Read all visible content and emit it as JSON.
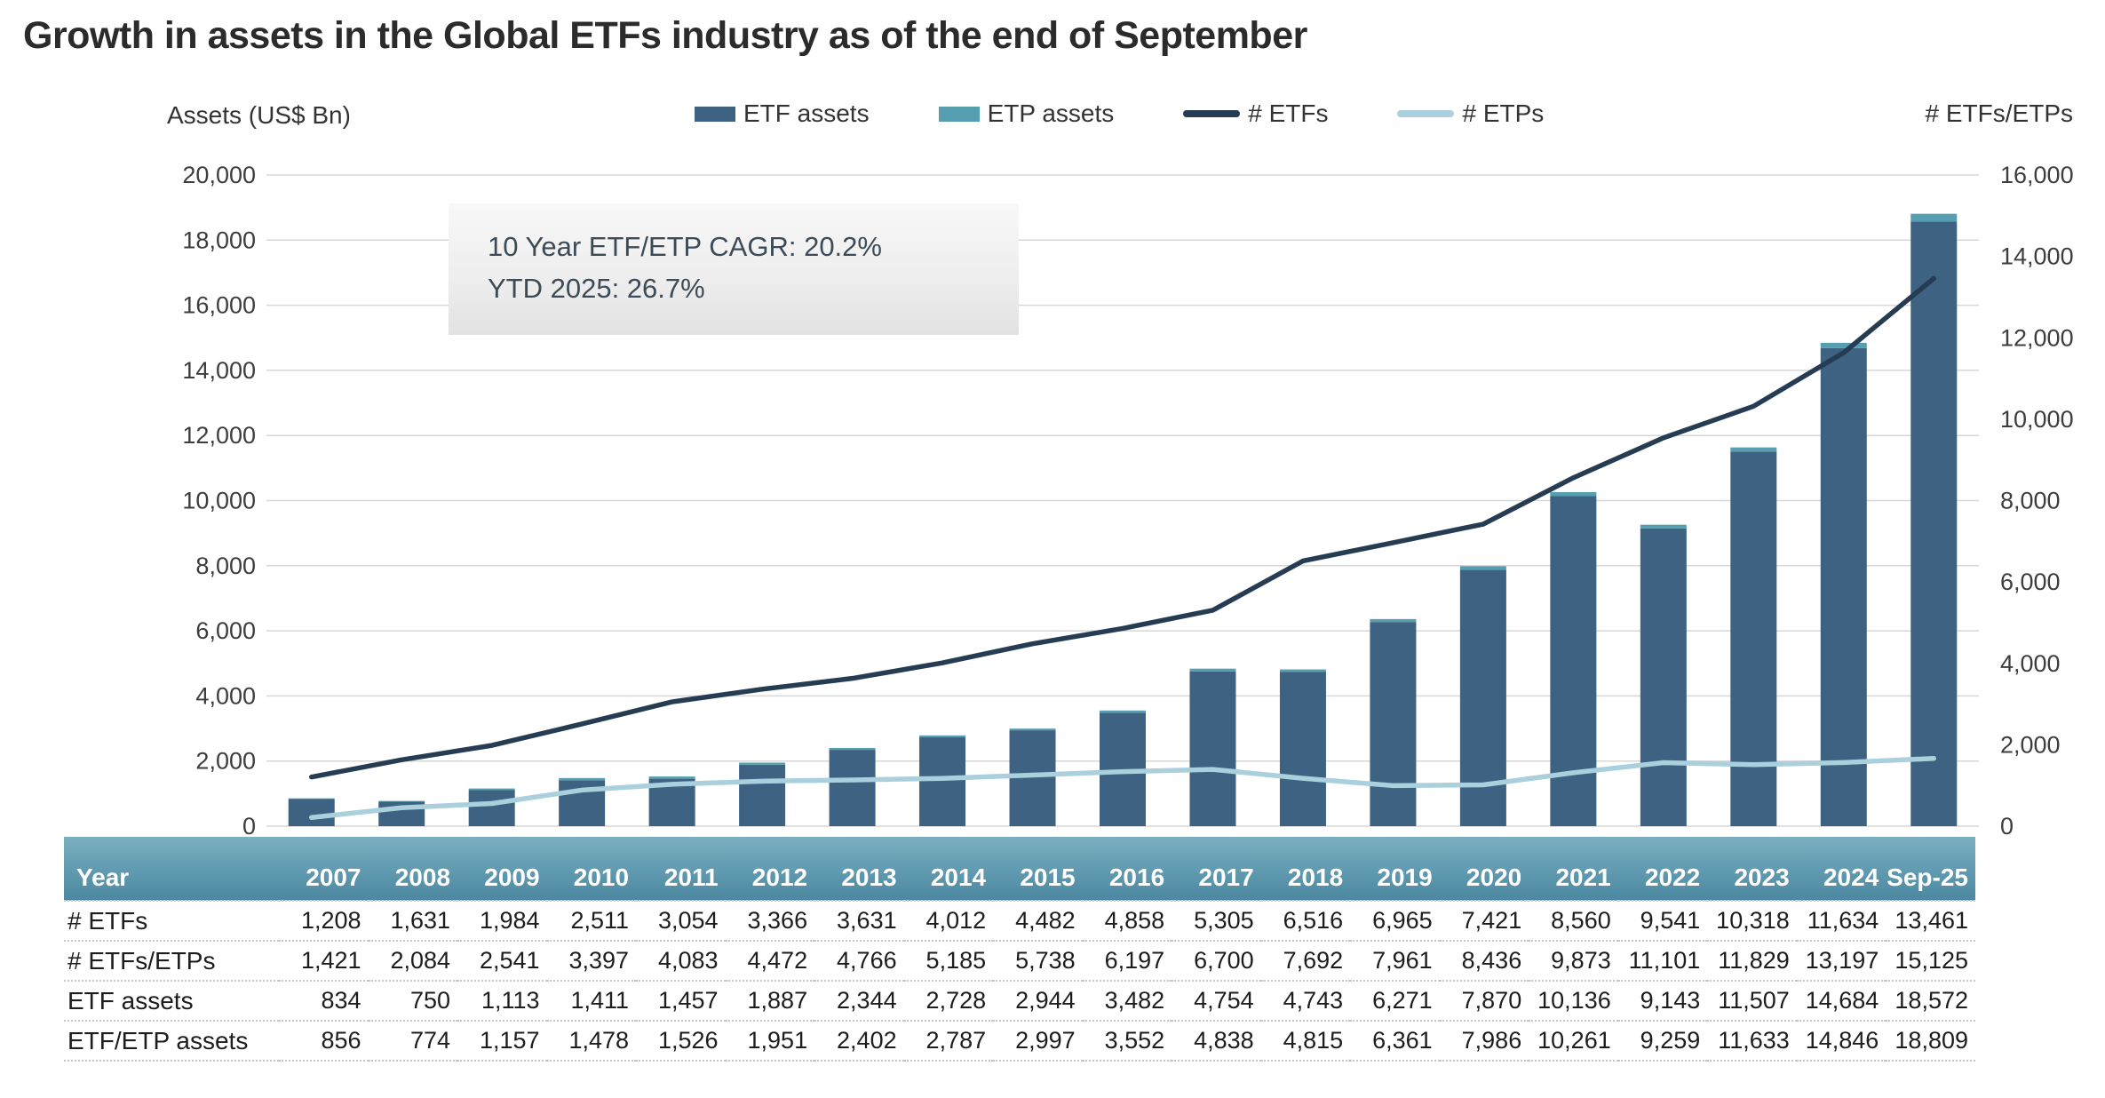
{
  "title": "Growth in assets in the Global ETFs industry as of the end of September",
  "left_axis_title": "Assets (US$ Bn)",
  "right_axis_title": "# ETFs/ETPs",
  "legend": [
    {
      "label": "ETF assets",
      "type": "bar",
      "color": "#3e6282"
    },
    {
      "label": "ETP assets",
      "type": "bar",
      "color": "#569fb1"
    },
    {
      "label": "# ETFs",
      "type": "line",
      "color": "#263c53"
    },
    {
      "label": "# ETPs",
      "type": "line",
      "color": "#a9d0dc"
    }
  ],
  "annotation": {
    "line1": "10 Year ETF/ETP CAGR: 20.2%",
    "line2": "YTD 2025: 26.7%"
  },
  "chart_data": {
    "type": "bar",
    "subtype": "stacked bars with dual-axis overlay lines",
    "categories": [
      "2007",
      "2008",
      "2009",
      "2010",
      "2011",
      "2012",
      "2013",
      "2014",
      "2015",
      "2016",
      "2017",
      "2018",
      "2019",
      "2020",
      "2021",
      "2022",
      "2023",
      "2024",
      "Sep-25"
    ],
    "series": [
      {
        "name": "ETF assets",
        "type": "bar",
        "axis": "left",
        "color": "#3e6282",
        "values": [
          834,
          750,
          1113,
          1411,
          1457,
          1887,
          2344,
          2728,
          2944,
          3482,
          4754,
          4743,
          6271,
          7870,
          10136,
          9143,
          11507,
          14684,
          18572
        ]
      },
      {
        "name": "ETP assets",
        "type": "bar-stacked-on-top",
        "axis": "left",
        "color": "#569fb1",
        "values": [
          22,
          24,
          44,
          67,
          69,
          64,
          58,
          59,
          53,
          70,
          84,
          72,
          90,
          116,
          125,
          116,
          126,
          162,
          237
        ]
      },
      {
        "name": "# ETFs",
        "type": "line",
        "axis": "right",
        "color": "#263c53",
        "values": [
          1208,
          1631,
          1984,
          2511,
          3054,
          3366,
          3631,
          4012,
          4482,
          4858,
          5305,
          6516,
          6965,
          7421,
          8560,
          9541,
          10318,
          11634,
          13461
        ]
      },
      {
        "name": "# ETPs",
        "type": "line",
        "axis": "right",
        "color": "#a9d0dc",
        "values": [
          213,
          453,
          557,
          886,
          1029,
          1106,
          1135,
          1173,
          1256,
          1339,
          1395,
          1176,
          996,
          1015,
          1313,
          1560,
          1511,
          1563,
          1664
        ]
      }
    ],
    "title": "Growth in assets in the Global ETFs industry as of the end of September",
    "xlabel": "",
    "ylabel_left": "Assets (US$ Bn)",
    "ylabel_right": "# ETFs/ETPs",
    "left_axis": {
      "min": 0,
      "max": 20000,
      "step": 2000
    },
    "right_axis": {
      "min": 0,
      "max": 16000,
      "step": 2000
    },
    "grid": "horizontal",
    "legend_position": "top"
  },
  "table": {
    "header": [
      "Year",
      "2007",
      "2008",
      "2009",
      "2010",
      "2011",
      "2012",
      "2013",
      "2014",
      "2015",
      "2016",
      "2017",
      "2018",
      "2019",
      "2020",
      "2021",
      "2022",
      "2023",
      "2024",
      "Sep-25"
    ],
    "rows": [
      {
        "label": "# ETFs",
        "values": [
          "1,208",
          "1,631",
          "1,984",
          "2,511",
          "3,054",
          "3,366",
          "3,631",
          "4,012",
          "4,482",
          "4,858",
          "5,305",
          "6,516",
          "6,965",
          "7,421",
          "8,560",
          "9,541",
          "10,318",
          "11,634",
          "13,461"
        ]
      },
      {
        "label": "# ETFs/ETPs",
        "values": [
          "1,421",
          "2,084",
          "2,541",
          "3,397",
          "4,083",
          "4,472",
          "4,766",
          "5,185",
          "5,738",
          "6,197",
          "6,700",
          "7,692",
          "7,961",
          "8,436",
          "9,873",
          "11,101",
          "11,829",
          "13,197",
          "15,125"
        ]
      },
      {
        "label": "ETF assets",
        "values": [
          "834",
          "750",
          "1,113",
          "1,411",
          "1,457",
          "1,887",
          "2,344",
          "2,728",
          "2,944",
          "3,482",
          "4,754",
          "4,743",
          "6,271",
          "7,870",
          "10,136",
          "9,143",
          "11,507",
          "14,684",
          "18,572"
        ]
      },
      {
        "label": "ETF/ETP assets",
        "values": [
          "856",
          "774",
          "1,157",
          "1,478",
          "1,526",
          "1,951",
          "2,402",
          "2,787",
          "2,997",
          "3,552",
          "4,838",
          "4,815",
          "6,361",
          "7,986",
          "10,261",
          "9,259",
          "11,633",
          "14,846",
          "18,809"
        ]
      }
    ]
  }
}
